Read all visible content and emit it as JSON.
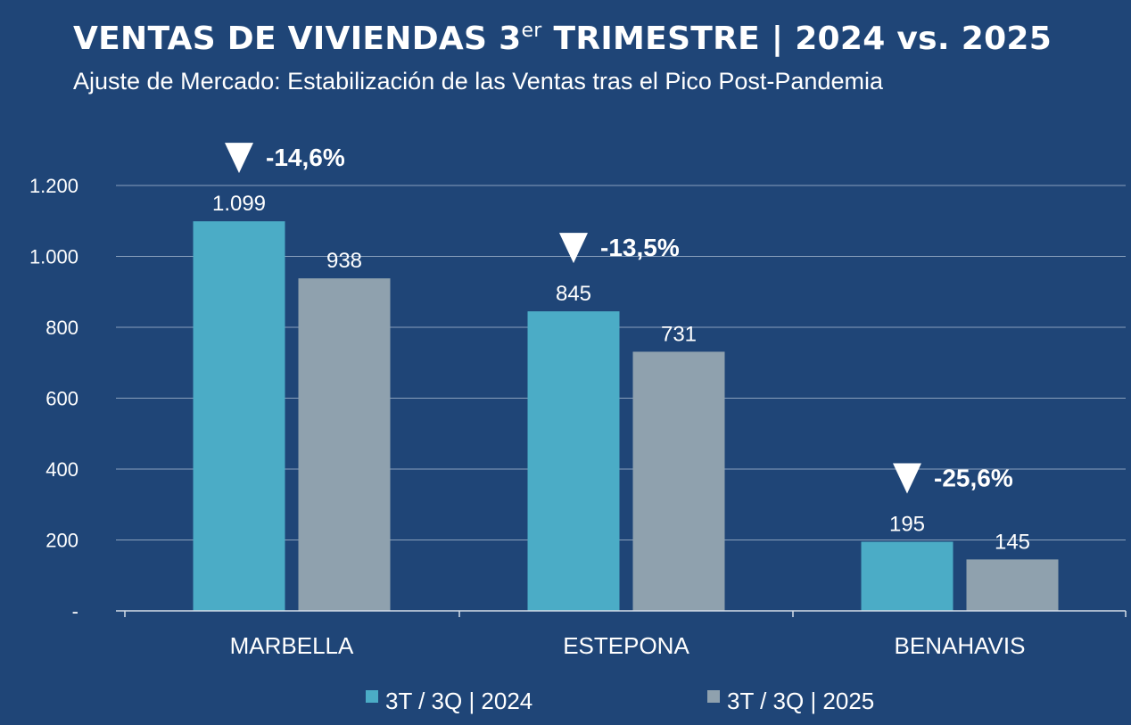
{
  "colors": {
    "background": "#1f4577",
    "series_2024": "#4bacc6",
    "series_2025": "#8fa1ae",
    "text": "#ffffff",
    "grid": "#aebfd3"
  },
  "header": {
    "title_main": "VENTAS DE VIVIENDAS 3",
    "title_sup": "er",
    "title_rest": " TRIMESTRE | 2024 vs. 2025",
    "subtitle": "Ajuste de Mercado: Estabilización de las Ventas tras el Pico Post-Pandemia"
  },
  "chart_data": {
    "type": "bar",
    "title": "VENTAS DE VIVIENDAS 3er TRIMESTRE | 2024 vs. 2025",
    "subtitle": "Ajuste de Mercado: Estabilización de las Ventas tras el Pico Post-Pandemia",
    "categories": [
      "MARBELLA",
      "ESTEPONA",
      "BENAHAVIS"
    ],
    "series": [
      {
        "name": "3T / 3Q | 2024",
        "values": [
          1099,
          845,
          195
        ],
        "labels": [
          "1.099",
          "845",
          "195"
        ]
      },
      {
        "name": "3T / 3Q | 2025",
        "values": [
          938,
          731,
          145
        ],
        "labels": [
          "938",
          "731",
          "145"
        ]
      }
    ],
    "change_labels": [
      "-14,6%",
      "-13,5%",
      "-25,6%"
    ],
    "y_ticks": [
      0,
      200,
      400,
      600,
      800,
      1000,
      1200
    ],
    "y_tick_labels": [
      "-",
      "200",
      "400",
      "600",
      "800",
      "1.000",
      "1.200"
    ],
    "ylim": [
      0,
      1200
    ],
    "xlabel": "",
    "ylabel": "",
    "grid": true,
    "legend_position": "bottom-center"
  }
}
